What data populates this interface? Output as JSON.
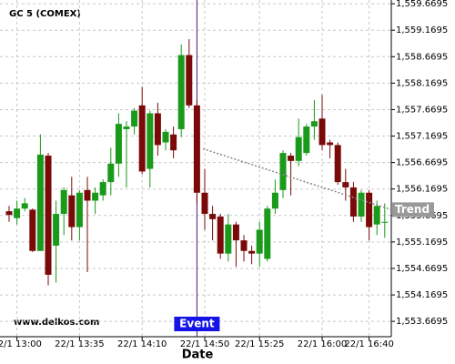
{
  "chart_data": {
    "type": "candlestick",
    "title": "GC 5 (COMEX)",
    "watermark": "www.delkos.com",
    "x_label": "Date",
    "categories": [
      null,
      "22/1 13:00",
      null,
      null,
      null,
      null,
      null,
      null,
      null,
      "22/1 13:35",
      null,
      null,
      null,
      null,
      null,
      null,
      null,
      "22/1 14:10",
      null,
      null,
      null,
      null,
      null,
      null,
      null,
      "22/1 14:50",
      null,
      null,
      null,
      null,
      null,
      null,
      "22/1 15:25",
      null,
      null,
      null,
      null,
      null,
      null,
      null,
      "22/1 16:00",
      null,
      null,
      null,
      null,
      null,
      "22/1 16:40",
      null,
      null
    ],
    "open": [
      1555.75,
      1555.62,
      1555.8,
      1555.78,
      1555.0,
      1556.8,
      1555.1,
      1555.7,
      1556.05,
      1555.45,
      1556.15,
      1555.95,
      1556.05,
      1556.3,
      1556.65,
      1557.3,
      1557.35,
      1557.75,
      1556.55,
      1557.6,
      1557.05,
      1557.2,
      1557.3,
      1558.7,
      1557.75,
      1556.1,
      1555.7,
      1555.65,
      1554.95,
      1555.5,
      1555.2,
      1555.0,
      1554.95,
      1554.85,
      1555.8,
      1556.15,
      1556.8,
      1556.7,
      1556.85,
      1557.35,
      1557.5,
      1557.05,
      1557.0,
      1556.3,
      1556.2,
      1555.65,
      1556.1,
      1555.5,
      1555.55
    ],
    "high": [
      1555.85,
      1555.95,
      1556.0,
      1555.8,
      1557.2,
      1556.85,
      1555.95,
      1556.2,
      1556.4,
      1556.15,
      1556.4,
      1556.2,
      1556.35,
      1556.95,
      1557.6,
      1557.45,
      1557.7,
      1558.1,
      1557.65,
      1557.8,
      1557.3,
      1557.35,
      1558.9,
      1559.0,
      1557.85,
      1556.55,
      1555.85,
      1555.7,
      1555.7,
      1555.55,
      1555.3,
      1555.1,
      1555.55,
      1555.85,
      1556.35,
      1556.9,
      1556.85,
      1557.5,
      1557.4,
      1557.85,
      1557.95,
      1557.1,
      1557.05,
      1556.55,
      1556.3,
      1556.15,
      1556.15,
      1555.95,
      1555.9
    ],
    "low": [
      1555.55,
      1555.5,
      1555.75,
      1554.98,
      1555.0,
      1554.35,
      1554.4,
      1555.3,
      1555.2,
      1555.2,
      1554.6,
      1555.7,
      1555.95,
      1556.05,
      1556.4,
      1556.2,
      1557.2,
      1556.45,
      1556.2,
      1556.8,
      1556.9,
      1556.75,
      1557.15,
      1557.7,
      1555.9,
      1555.4,
      1555.2,
      1554.85,
      1554.8,
      1554.7,
      1554.8,
      1554.75,
      1554.7,
      1554.8,
      1555.7,
      1556.0,
      1556.05,
      1556.6,
      1556.8,
      1557.1,
      1556.9,
      1556.75,
      1556.25,
      1555.95,
      1555.55,
      1555.55,
      1555.2,
      1555.3,
      1555.25
    ],
    "close": [
      1555.68,
      1555.8,
      1555.9,
      1555.0,
      1556.82,
      1554.55,
      1555.7,
      1556.15,
      1555.45,
      1556.1,
      1555.95,
      1556.1,
      1556.3,
      1556.65,
      1557.4,
      1557.35,
      1557.65,
      1556.5,
      1557.6,
      1557.0,
      1557.25,
      1556.9,
      1558.7,
      1557.75,
      1556.1,
      1555.7,
      1555.6,
      1554.95,
      1555.5,
      1555.2,
      1555.0,
      1554.95,
      1555.4,
      1555.8,
      1556.1,
      1556.85,
      1556.7,
      1557.15,
      1557.35,
      1557.45,
      1557.0,
      1557.0,
      1556.3,
      1556.2,
      1555.65,
      1556.1,
      1555.45,
      1555.85,
      1555.55
    ],
    "up_color": "#1a9a1a",
    "down_color": "#7a0a0a",
    "ylim": [
      1553.38,
      1559.74
    ],
    "yticks": [
      {
        "value": 1553.6695,
        "label": "1,553.6695"
      },
      {
        "value": 1554.1695,
        "label": "1,554.1695"
      },
      {
        "value": 1554.6695,
        "label": "1,554.6695"
      },
      {
        "value": 1555.1695,
        "label": "1,555.1695"
      },
      {
        "value": 1555.6695,
        "label": "1,555.6695"
      },
      {
        "value": 1556.1695,
        "label": "1,556.1695"
      },
      {
        "value": 1556.6695,
        "label": "1,556.6695"
      },
      {
        "value": 1557.1695,
        "label": "1,557.1695"
      },
      {
        "value": 1557.6695,
        "label": "1,557.6695"
      },
      {
        "value": 1558.1695,
        "label": "1,558.1695"
      },
      {
        "value": 1558.6695,
        "label": "1,558.6695"
      },
      {
        "value": 1559.1695,
        "label": "1,559.1695"
      },
      {
        "value": 1559.6695,
        "label": "1,559.6695"
      }
    ],
    "grid": true,
    "trend": {
      "label": "Trend",
      "values": [
        1556.93,
        1555.78
      ]
    },
    "event": {
      "label": "Event"
    }
  }
}
